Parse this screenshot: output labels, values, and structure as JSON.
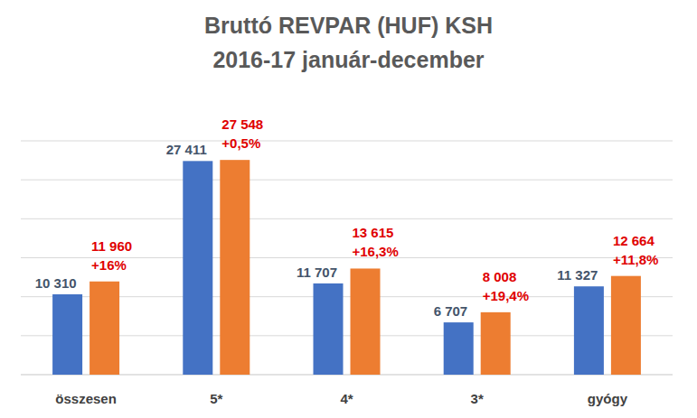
{
  "chart_data": {
    "type": "bar",
    "title": "Bruttó REVPAR (HUF) KSH",
    "subtitle": "2016-17 január-december",
    "categories": [
      "összesen",
      "5*",
      "4*",
      "3*",
      "gyógy"
    ],
    "series": [
      {
        "color": "#4472c4",
        "values": [
          10310,
          27411,
          11707,
          6707,
          11327
        ],
        "value_labels": [
          "10 310",
          "27 411",
          "11 707",
          "6 707",
          "11 327"
        ]
      },
      {
        "color": "#ed7d31",
        "values": [
          11960,
          27548,
          13615,
          8008,
          12664
        ],
        "value_labels": [
          "11 960",
          "27 548",
          "13 615",
          "8 008",
          "12 664"
        ],
        "change_labels": [
          "+16%",
          "+0,5%",
          "+16,3%",
          "+19,4%",
          "+11,8%"
        ]
      }
    ],
    "ylim": [
      0,
      30000
    ],
    "yticks": [
      0,
      5000,
      10000,
      15000,
      20000,
      25000,
      30000
    ],
    "grid": true,
    "data_labels": true,
    "tick_labels": "x"
  }
}
